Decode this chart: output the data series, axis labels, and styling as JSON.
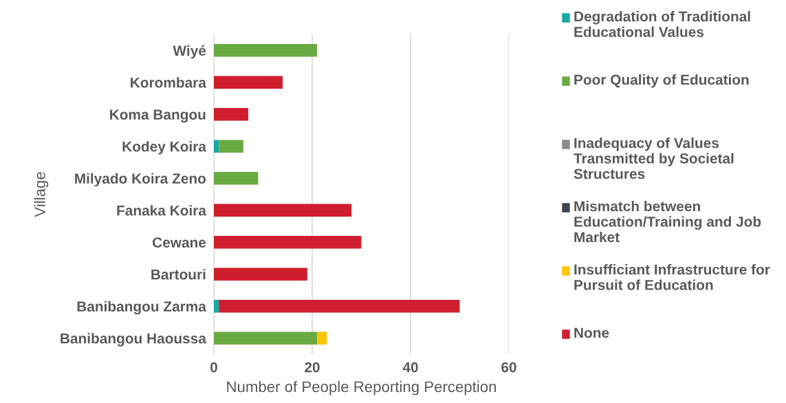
{
  "chart_data": {
    "type": "bar",
    "orientation": "horizontal",
    "stacked": true,
    "xlabel": "Number of People Reporting Perception",
    "ylabel": "Village",
    "categories": [
      "Wiyé",
      "Korombara",
      "Koma Bangou",
      "Kodey Koira",
      "Milyado Koira Zeno",
      "Fanaka Koira",
      "Cewane",
      "Bartouri",
      "Banibangou Zarma",
      "Banibangou Haoussa"
    ],
    "series": [
      {
        "name": "Degradation of Traditional Educational Values",
        "color": "#17a8a4",
        "values": [
          0,
          0,
          0,
          1,
          0,
          0,
          0,
          0,
          1,
          0
        ]
      },
      {
        "name": "Poor Quality of Education",
        "color": "#6aaa42",
        "values": [
          21,
          0,
          0,
          5,
          9,
          0,
          0,
          0,
          0,
          21
        ]
      },
      {
        "name": "Inadequacy of Values Transmitted by Societal Structures",
        "color": "#8c8c94",
        "values": [
          0,
          0,
          0,
          0,
          0,
          0,
          0,
          0,
          0,
          0
        ]
      },
      {
        "name": "Mismatch between Education/Training and Job Market",
        "color": "#3f4550",
        "values": [
          0,
          0,
          0,
          0,
          0,
          0,
          0,
          0,
          0,
          0
        ]
      },
      {
        "name": "Insufficiant Infrastructure for Pursuit of Education",
        "color": "#fcc40a",
        "values": [
          0,
          0,
          0,
          0,
          0,
          0,
          0,
          0,
          0,
          2
        ]
      },
      {
        "name": "None",
        "color": "#cf1f2e",
        "values": [
          0,
          14,
          7,
          0,
          0,
          28,
          30,
          19,
          49,
          0
        ]
      }
    ],
    "xlim": [
      0,
      60
    ],
    "xticks": [
      0,
      20,
      40,
      60
    ],
    "grid": "x",
    "legend": "right"
  }
}
